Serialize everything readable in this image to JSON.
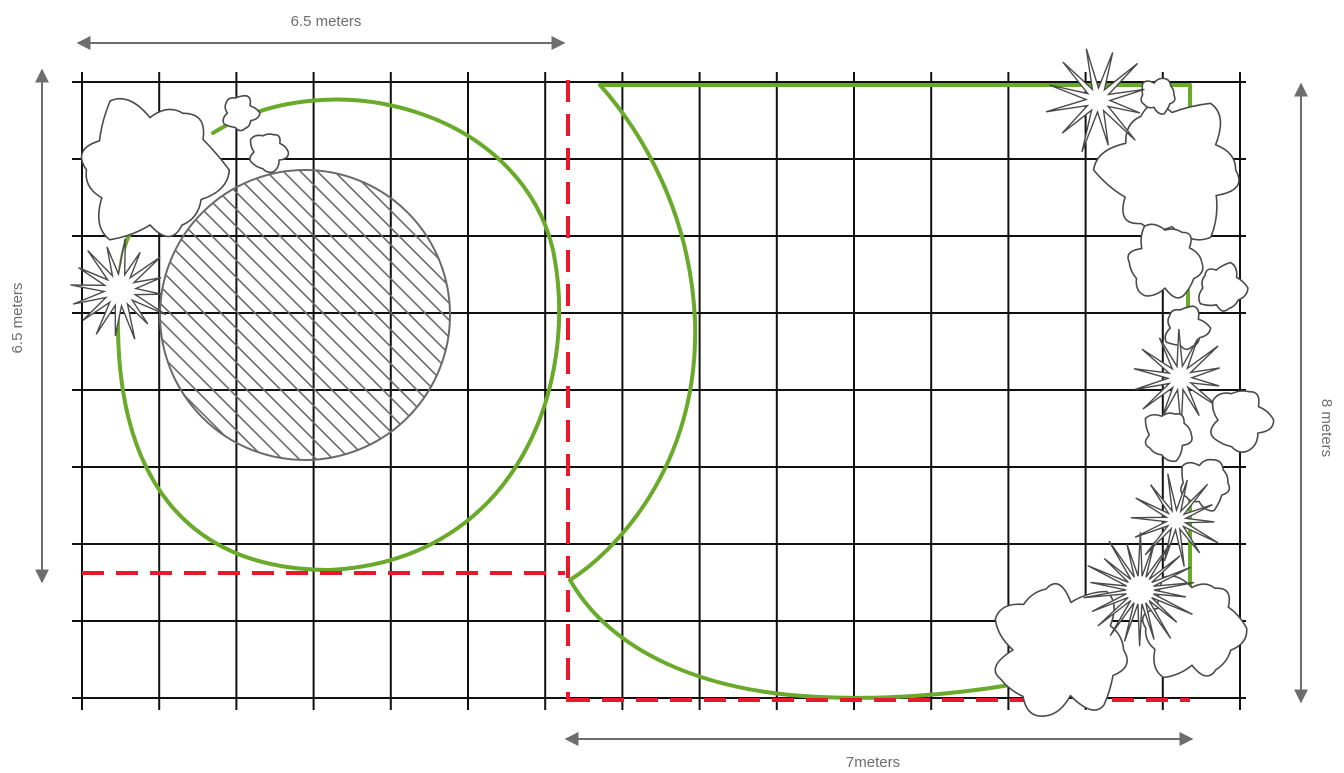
{
  "dimensions": {
    "top_width": "6.5 meters",
    "left_height": "6.5 meters",
    "right_height": "8 meters",
    "bottom_width": "7meters"
  },
  "colors": {
    "grid": "#111111",
    "lawn_outline": "#6aaa2a",
    "boundary_dashed": "#e8192c",
    "dimension": "#6d6d6d",
    "plant_outline": "#4a4a4a"
  },
  "icons": [
    "shrub-icon",
    "spiky-plant-icon",
    "flower-cluster-icon",
    "hatched-circle-patio"
  ]
}
